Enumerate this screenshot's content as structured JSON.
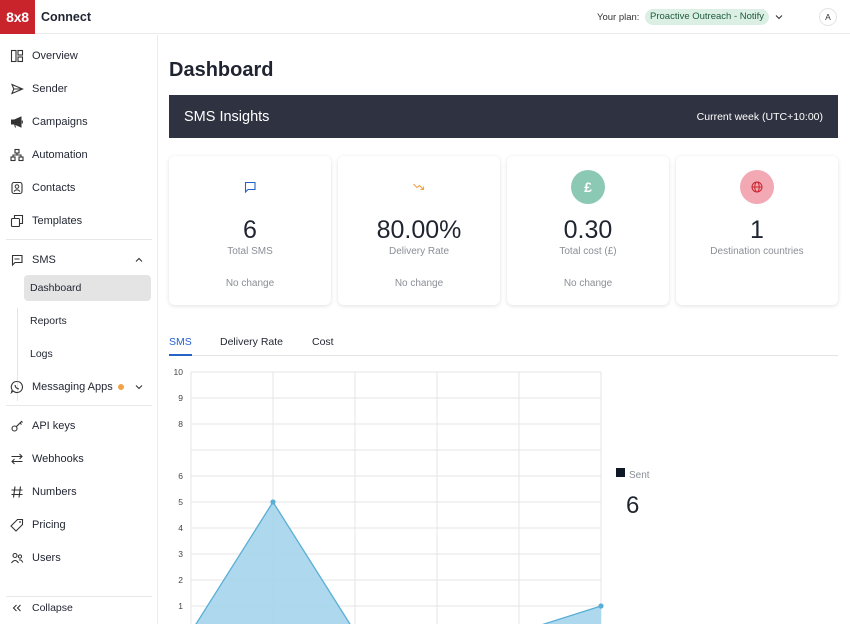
{
  "header": {
    "logo_text": "8x8",
    "brand": "Connect",
    "plan_label": "Your plan:",
    "plan_value": "Proactive Outreach - Notify",
    "avatar_initial": "A"
  },
  "sidebar": {
    "items": [
      {
        "label": "Overview",
        "icon": "overview-icon"
      },
      {
        "label": "Sender",
        "icon": "send-icon"
      },
      {
        "label": "Campaigns",
        "icon": "megaphone-icon"
      },
      {
        "label": "Automation",
        "icon": "automation-icon"
      },
      {
        "label": "Contacts",
        "icon": "contacts-icon"
      },
      {
        "label": "Templates",
        "icon": "templates-icon"
      }
    ],
    "sms": {
      "label": "SMS",
      "sub_items": [
        "Dashboard",
        "Reports",
        "Logs"
      ],
      "active": "Dashboard"
    },
    "messaging_apps": {
      "label": "Messaging Apps",
      "badge_color": "#f0a24a"
    },
    "bottom_items": [
      {
        "label": "API keys",
        "icon": "key-icon"
      },
      {
        "label": "Webhooks",
        "icon": "webhooks-icon"
      },
      {
        "label": "Numbers",
        "icon": "hash-icon"
      },
      {
        "label": "Pricing",
        "icon": "tag-icon"
      },
      {
        "label": "Users",
        "icon": "users-icon"
      }
    ],
    "collapse_label": "Collapse"
  },
  "main": {
    "title": "Dashboard",
    "banner_title": "SMS Insights",
    "banner_period": "Current week (UTC+10:00)",
    "cards": [
      {
        "value": "6",
        "label": "Total SMS",
        "change": "No change",
        "icon": "message-icon",
        "color": "#2563c9"
      },
      {
        "value": "80.00%",
        "label": "Delivery Rate",
        "change": "No change",
        "icon": "trend-down-icon",
        "color": "#f0a24a"
      },
      {
        "value": "0.30",
        "label": "Total cost (£)",
        "change": "No change",
        "icon": "pound-icon",
        "color": "#8cc9b4"
      },
      {
        "value": "1",
        "label": "Destination countries",
        "change": "",
        "icon": "globe-icon",
        "color": "#f2a9b3"
      }
    ],
    "tabs": [
      "SMS",
      "Delivery Rate",
      "Cost"
    ],
    "active_tab": "SMS"
  },
  "chart_data": {
    "type": "area",
    "series": [
      {
        "name": "Sent",
        "values": [
          0,
          5,
          0,
          0,
          0,
          1
        ]
      }
    ],
    "ylim": [
      0,
      10
    ],
    "y_ticks": [
      "10",
      "9",
      "8",
      "6",
      "5",
      "4",
      "3",
      "2",
      "1"
    ],
    "legend_total": "6",
    "colors": {
      "fill": "#a9d6ec",
      "line": "#5aaed6"
    }
  }
}
